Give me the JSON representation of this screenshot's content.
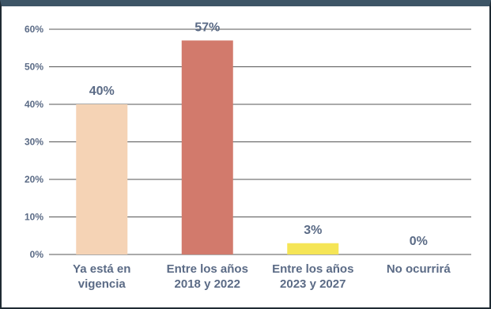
{
  "chart_data": {
    "type": "bar",
    "categories": [
      [
        "Ya está en",
        "vigencia"
      ],
      [
        "Entre los años",
        "2018 y 2022"
      ],
      [
        "Entre los años",
        "2023 y 2027"
      ],
      [
        "No ocurrirá"
      ]
    ],
    "values": [
      40,
      57,
      3,
      0
    ],
    "data_labels": [
      "40%",
      "57%",
      "3%",
      "0%"
    ],
    "y_ticks": [
      {
        "value": 0,
        "label": "0%"
      },
      {
        "value": 10,
        "label": "10%"
      },
      {
        "value": 20,
        "label": "20%"
      },
      {
        "value": 30,
        "label": "30%"
      },
      {
        "value": 40,
        "label": "40%"
      },
      {
        "value": 50,
        "label": "50%"
      },
      {
        "value": 60,
        "label": "60%"
      }
    ],
    "ylim": [
      0,
      60
    ],
    "grid": true,
    "colors": [
      "#f5d3b5",
      "#d27a6c",
      "#f5e556",
      "#f5e556"
    ],
    "axis_text_color": "#5b6b86",
    "grid_color": "#555555"
  }
}
